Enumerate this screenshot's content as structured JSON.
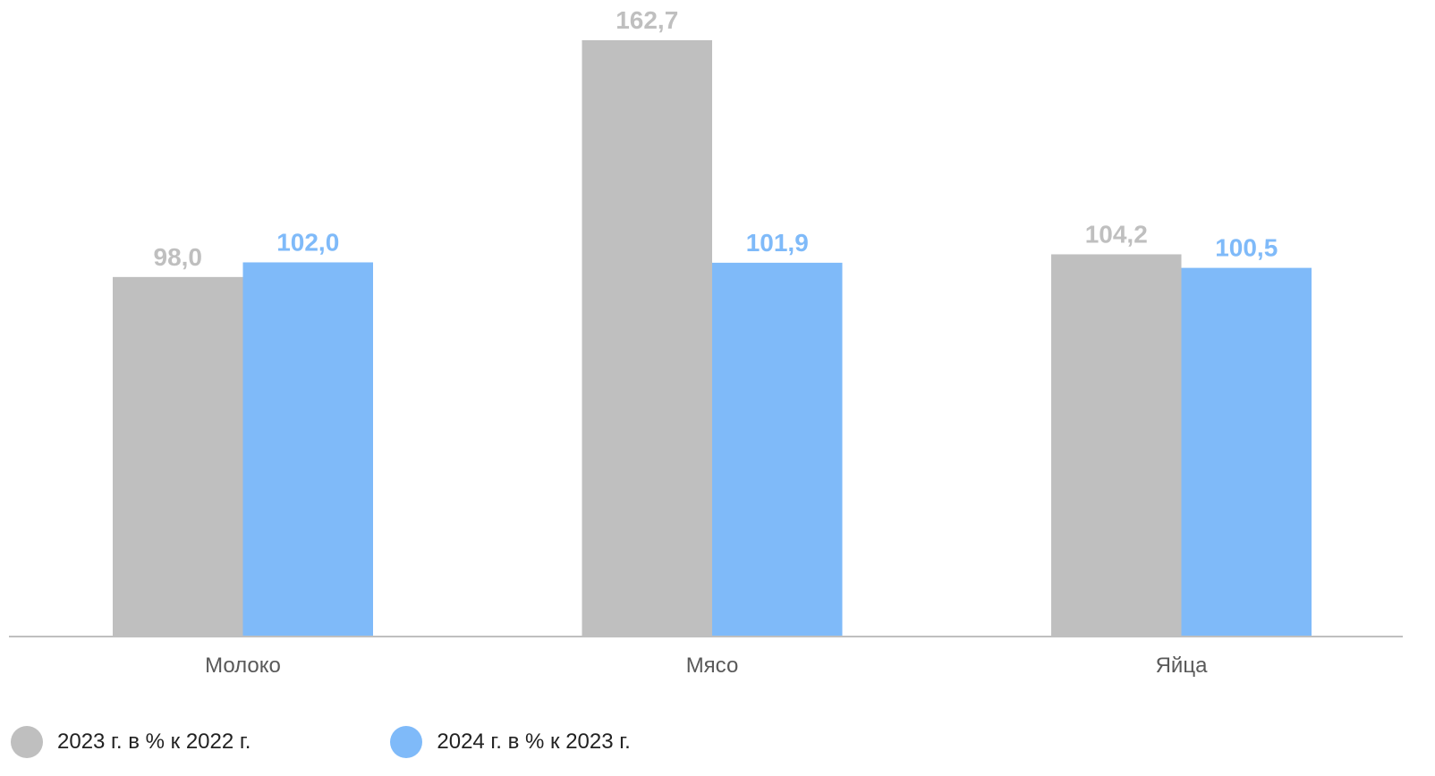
{
  "chart_data": {
    "type": "bar",
    "categories": [
      "Молоко",
      "Мясо",
      "Яйца"
    ],
    "series": [
      {
        "name": "2023 г. в % к 2022 г.",
        "values": [
          98.0,
          162.7,
          104.2
        ],
        "labels": [
          "98,0",
          "162,7",
          "104,2"
        ],
        "color": "#bfbfbf"
      },
      {
        "name": "2024 г. в % к 2023 г.",
        "values": [
          102.0,
          101.9,
          100.5
        ],
        "labels": [
          "102,0",
          "101,9",
          "100,5"
        ],
        "color": "#7fbaf9"
      }
    ],
    "ylim": [
      0,
      165
    ],
    "grid": false,
    "legend_position": "bottom-left",
    "axis_color": "#bfbfbf",
    "category_label_color": "#595959"
  }
}
